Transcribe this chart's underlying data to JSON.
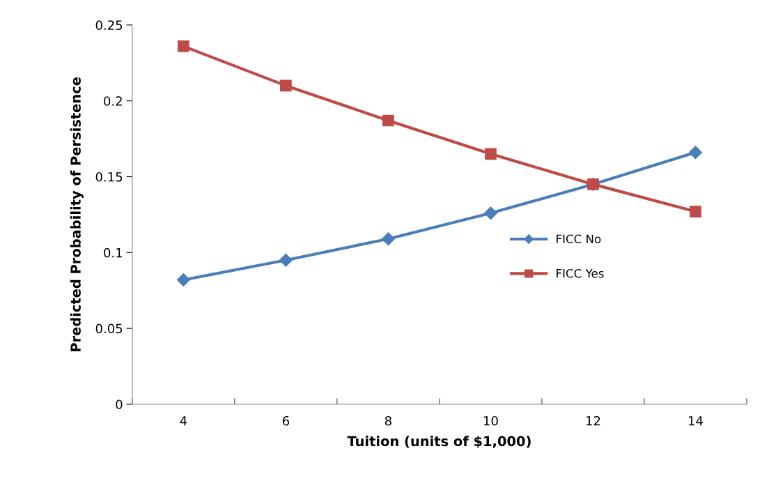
{
  "chart_data": {
    "type": "line",
    "xlabel": "Tuition (units of $1,000)",
    "ylabel": "Predicted Probability of Persistence",
    "categories": [
      "4",
      "6",
      "8",
      "10",
      "12",
      "14"
    ],
    "series": [
      {
        "name": "FICC No",
        "color": "#4a7ebb",
        "marker": "diamond",
        "values": [
          0.082,
          0.095,
          0.109,
          0.126,
          0.145,
          0.166
        ]
      },
      {
        "name": "FICC Yes",
        "color": "#be4b48",
        "marker": "square",
        "values": [
          0.236,
          0.21,
          0.187,
          0.165,
          0.145,
          0.127
        ]
      }
    ],
    "ylim": [
      0,
      0.25
    ],
    "yticks": [
      0,
      0.05,
      0.1,
      0.15,
      0.2,
      0.25
    ],
    "grid": false,
    "legend": "right",
    "line_style": "solid"
  }
}
